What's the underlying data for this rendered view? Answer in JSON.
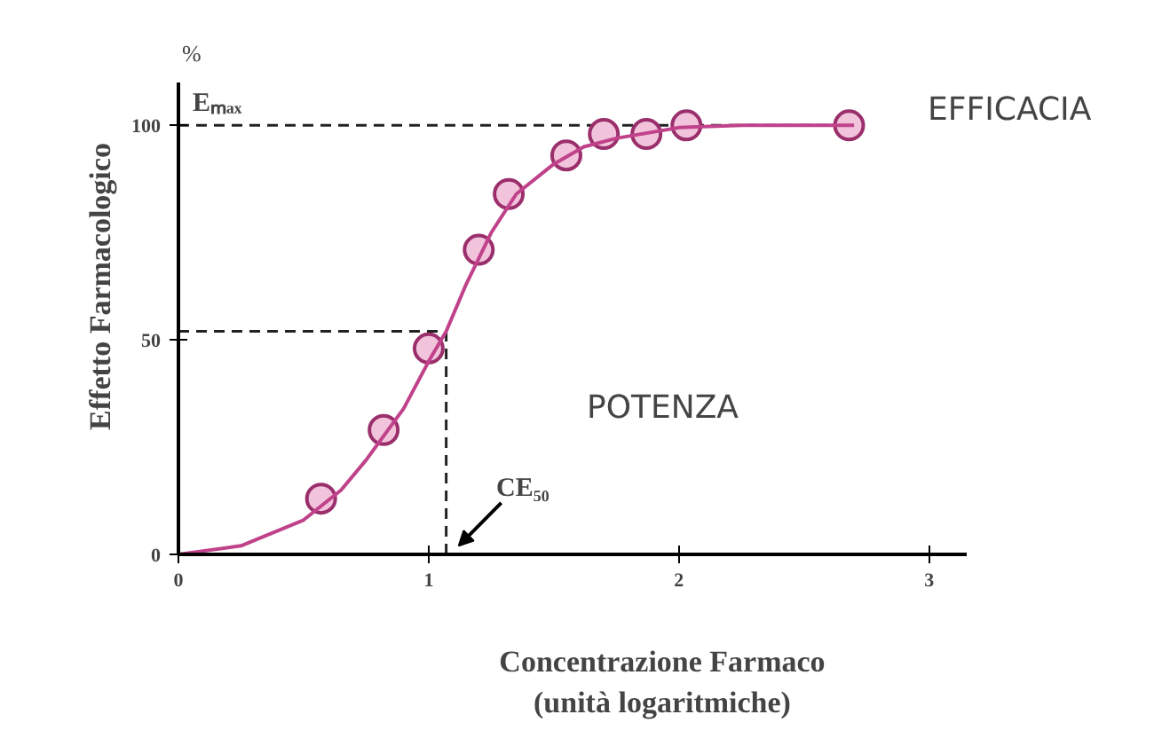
{
  "chart_data": {
    "type": "scatter",
    "xlabel": "Concentrazione Farmaco\n(unità logaritmiche)",
    "ylabel": "Effetto Farmacologico",
    "xlim": [
      0,
      3.15
    ],
    "ylim": [
      0,
      110
    ],
    "xticks": [
      0,
      1,
      2,
      3
    ],
    "yticks": [
      0,
      50,
      100
    ],
    "series": [
      {
        "color": "#f2c4dc",
        "marker": "circle",
        "x": [
          0.57,
          0.82,
          1.0,
          1.2,
          1.32,
          1.55,
          1.7,
          1.87,
          2.03,
          2.68
        ],
        "values": [
          13,
          29,
          48,
          71,
          84,
          93,
          98,
          98,
          100,
          100
        ]
      },
      {
        "type": "line",
        "color": "#c0428a",
        "x": [
          0,
          0.25,
          0.5,
          0.65,
          0.75,
          0.9,
          1.0,
          1.07,
          1.15,
          1.25,
          1.35,
          1.5,
          1.62,
          1.75,
          2.0,
          2.25,
          2.7
        ],
        "values": [
          0,
          2,
          8,
          15,
          22,
          34,
          45,
          52,
          63,
          75,
          84,
          91,
          95,
          97,
          99.5,
          100,
          100
        ]
      }
    ],
    "ref_lines": [
      {
        "axis": "y",
        "value": 100,
        "label": "Eₘₐₓ",
        "line_style": "dashed",
        "color": "#222222"
      },
      {
        "axis": "y",
        "value": 52,
        "line_style": "dashed",
        "color": "#222222"
      },
      {
        "axis": "x",
        "value": 1.07,
        "label": "CE₅₀",
        "line_style": "dashed",
        "color": "#222222"
      }
    ],
    "annotations": [
      "%",
      "EFFICACIA",
      "POTENZA"
    ]
  }
}
